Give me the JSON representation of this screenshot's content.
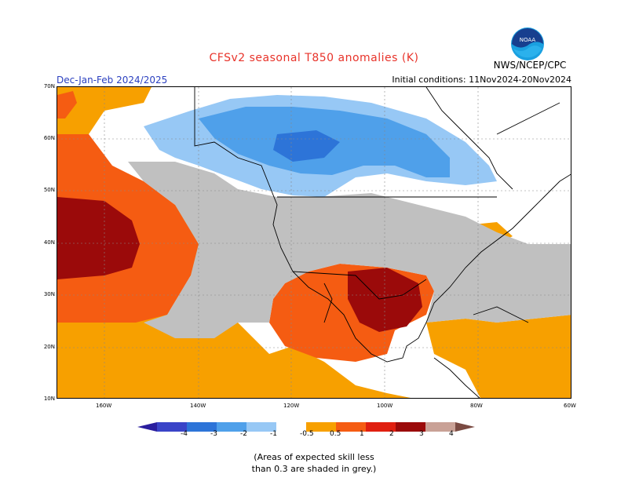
{
  "title": "CFSv2 seasonal T850 anomalies (K)",
  "period": "Dec-Jan-Feb 2024/2025",
  "initial_conditions": "Initial conditions: 11Nov2024-20Nov2024",
  "agency": "NWS/NCEP/CPC",
  "logo": {
    "icon": "noaa-logo-icon",
    "text": "NOAA"
  },
  "map": {
    "lat_labels": [
      "70N",
      "60N",
      "50N",
      "40N",
      "30N",
      "20N",
      "10N"
    ],
    "lon_labels": [
      "160W",
      "140W",
      "120W",
      "100W",
      "80W",
      "60W"
    ]
  },
  "colorbar": {
    "ticks": [
      "-4",
      "-3",
      "-2",
      "-1",
      "-0.5",
      "0.5",
      "1",
      "2",
      "3",
      "4"
    ],
    "colors": [
      "#2a1e9e",
      "#3a44c8",
      "#2d74d8",
      "#4fa0ea",
      "#97c8f5",
      "#ffffff",
      "#f7a000",
      "#f55c12",
      "#e01f10",
      "#9b0a0a",
      "#c9a196",
      "#7a4a42"
    ]
  },
  "footnote": {
    "line1": "(Areas of expected skill less",
    "line2": "than 0.3 are shaded in grey.)"
  }
}
